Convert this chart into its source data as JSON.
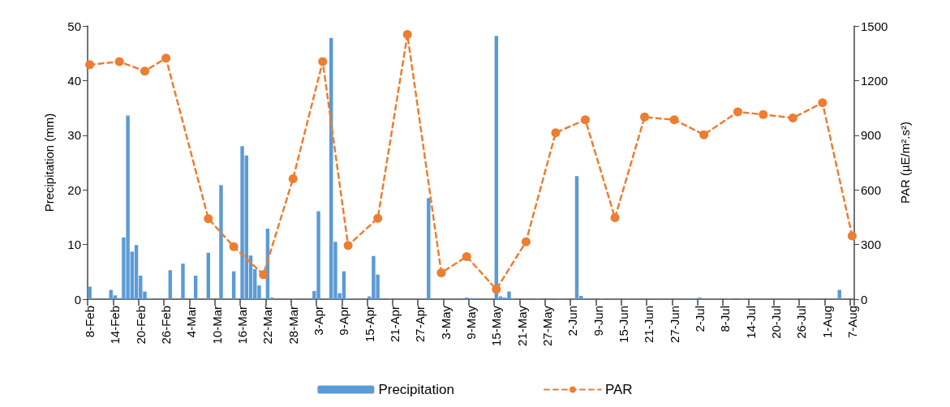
{
  "chart_data": {
    "type": "bar",
    "ylabel": "Precipitation (mm)",
    "y2label": "PAR (µE/m².s²)",
    "categories": [
      "8-Feb",
      null,
      null,
      null,
      null,
      null,
      "14-Feb",
      null,
      null,
      null,
      null,
      null,
      "20-Feb",
      null,
      null,
      null,
      null,
      null,
      "26-Feb",
      null,
      null,
      null,
      null,
      null,
      "4-Mar",
      null,
      null,
      null,
      null,
      null,
      "10-Mar",
      null,
      null,
      null,
      null,
      null,
      "16-Mar",
      null,
      null,
      null,
      null,
      null,
      "22-Mar",
      null,
      null,
      null,
      null,
      null,
      "28-Mar",
      null,
      null,
      null,
      null,
      null,
      "3-Apr",
      null,
      null,
      null,
      null,
      null,
      "9-Apr",
      null,
      null,
      null,
      null,
      null,
      "15-Apr",
      null,
      null,
      null,
      null,
      null,
      "21-Apr",
      null,
      null,
      null,
      null,
      null,
      "27-Apr",
      null,
      null,
      null,
      null,
      null,
      "3-May",
      null,
      null,
      null,
      null,
      null,
      "9-May",
      null,
      null,
      null,
      null,
      null,
      "15-May",
      null,
      null,
      null,
      null,
      null,
      "21-May",
      null,
      null,
      null,
      null,
      null,
      "27-May",
      null,
      null,
      null,
      null,
      null,
      "2-Jun",
      null,
      null,
      null,
      null,
      null,
      "9-Jun",
      null,
      null,
      null,
      null,
      null,
      "15-Jun",
      null,
      null,
      null,
      null,
      null,
      "21-Jun",
      null,
      null,
      null,
      null,
      null,
      "27-Jun",
      null,
      null,
      null,
      null,
      null,
      "2-Jul",
      null,
      null,
      null,
      null,
      null,
      "8-Jul",
      null,
      null,
      null,
      null,
      null,
      "14-Jul",
      null,
      null,
      null,
      null,
      null,
      "20-Jul",
      null,
      null,
      null,
      null,
      null,
      "26-Jul",
      null,
      null,
      null,
      null,
      null,
      "1-Aug",
      null,
      null,
      null,
      null,
      null,
      "7-Aug"
    ],
    "series": [
      {
        "name": "Precipitation",
        "color": "#5b9bd5",
        "values": [
          2.3,
          null,
          null,
          null,
          null,
          1.7,
          0.7,
          null,
          11.3,
          33.6,
          8.7,
          9.9,
          4.3,
          1.4,
          0.1,
          null,
          null,
          null,
          null,
          5.3,
          null,
          null,
          6.5,
          null,
          null,
          4.3,
          null,
          null,
          8.5,
          null,
          null,
          20.9,
          null,
          null,
          5.1,
          null,
          28.0,
          26.3,
          8.0,
          5.5,
          2.5,
          null,
          12.9,
          0.3,
          null,
          null,
          null,
          null,
          0.1,
          null,
          null,
          null,
          null,
          1.5,
          16.1,
          null,
          null,
          47.8,
          10.5,
          1.1,
          5.1,
          0.1,
          null,
          null,
          null,
          null,
          0.5,
          7.9,
          4.5,
          null,
          null,
          0.1,
          null,
          null,
          null,
          null,
          null,
          null,
          null,
          null,
          18.5,
          null,
          null,
          null,
          null,
          null,
          null,
          null,
          null,
          0.3,
          0.2,
          null,
          null,
          null,
          null,
          null,
          48.2,
          0.5,
          0.3,
          1.4,
          0.1,
          null,
          null,
          null,
          null,
          null,
          0.1,
          null,
          null,
          null,
          null,
          0.1,
          null,
          null,
          null,
          22.5,
          0.6,
          null,
          null,
          null,
          null,
          0.1,
          null,
          null,
          null,
          null,
          null,
          0.1,
          null,
          null,
          null,
          null,
          null,
          null,
          null,
          null,
          null,
          null,
          null,
          null,
          null,
          null,
          0.1,
          null,
          0.3,
          null,
          null,
          null,
          null,
          null,
          null,
          0.1,
          null,
          null,
          0.1,
          null,
          null,
          null,
          null,
          null,
          null,
          null,
          null,
          null,
          null,
          null,
          0.1,
          null,
          null,
          null,
          null,
          null,
          null,
          null,
          null,
          null,
          null,
          1.7,
          null,
          null,
          null
        ]
      },
      {
        "name": "PAR",
        "type": "line",
        "axis": "y2",
        "color": "#ed7d31",
        "values": [
          1287,
          null,
          null,
          null,
          null,
          null,
          null,
          1304,
          null,
          null,
          null,
          null,
          null,
          1252,
          null,
          null,
          null,
          null,
          1323,
          null,
          null,
          null,
          null,
          null,
          null,
          null,
          null,
          null,
          442,
          null,
          null,
          null,
          null,
          null,
          288,
          null,
          null,
          null,
          null,
          null,
          null,
          135,
          null,
          null,
          null,
          null,
          null,
          null,
          661,
          null,
          null,
          null,
          null,
          null,
          null,
          1304,
          null,
          null,
          null,
          null,
          null,
          295,
          null,
          null,
          null,
          null,
          null,
          null,
          444,
          null,
          null,
          null,
          null,
          null,
          null,
          1453,
          null,
          null,
          null,
          null,
          null,
          null,
          null,
          145,
          null,
          null,
          null,
          null,
          null,
          234,
          null,
          null,
          null,
          null,
          null,
          null,
          54,
          null,
          null,
          null,
          null,
          null,
          null,
          315,
          null,
          null,
          null,
          null,
          null,
          null,
          914,
          null,
          null,
          null,
          null,
          null,
          null,
          985,
          null,
          null,
          null,
          null,
          null,
          null,
          447,
          null,
          null,
          null,
          null,
          null,
          null,
          1000,
          null,
          null,
          null,
          null,
          null,
          null,
          985,
          null,
          null,
          null,
          null,
          null,
          null,
          903,
          null,
          null,
          null,
          null,
          null,
          null,
          null,
          1028,
          null,
          null,
          null,
          null,
          null,
          1014,
          null,
          null,
          null,
          null,
          null,
          null,
          995,
          null,
          null,
          null,
          null,
          null,
          null,
          1078,
          null,
          null,
          null,
          null,
          null,
          null,
          347
        ]
      }
    ],
    "ylim": [
      0,
      50
    ],
    "yticks": [
      0,
      10,
      20,
      30,
      40,
      50
    ],
    "y2lim": [
      0,
      1500
    ],
    "y2ticks": [
      0,
      300,
      600,
      900,
      1200,
      1500
    ],
    "legend": "bottom",
    "marker": "circle",
    "line_style": "dashed"
  }
}
